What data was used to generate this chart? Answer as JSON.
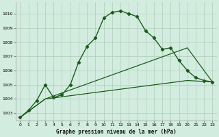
{
  "title": "Graphe pression niveau de la mer (hPa)",
  "background_color": "#d3ece0",
  "grid_color": "#b0ccb8",
  "line_color": "#1a5c1a",
  "xlim": [
    -0.5,
    23.5
  ],
  "ylim": [
    1002.5,
    1010.8
  ],
  "yticks": [
    1003,
    1004,
    1005,
    1006,
    1007,
    1008,
    1009,
    1010
  ],
  "xticks": [
    0,
    1,
    2,
    3,
    4,
    5,
    6,
    7,
    8,
    9,
    10,
    11,
    12,
    13,
    14,
    15,
    16,
    17,
    18,
    19,
    20,
    21,
    22,
    23
  ],
  "series1_x": [
    0,
    1,
    2,
    3,
    4,
    5,
    6,
    7,
    8,
    9,
    10,
    11,
    12,
    13,
    14,
    15,
    16,
    17,
    18,
    19,
    20,
    21,
    22,
    23
  ],
  "series1_y": [
    1002.7,
    1003.2,
    1003.9,
    1005.0,
    1004.1,
    1004.3,
    1005.0,
    1006.6,
    1007.7,
    1008.3,
    1009.7,
    1010.1,
    1010.2,
    1010.0,
    1009.8,
    1008.8,
    1008.3,
    1007.5,
    1007.6,
    1006.7,
    1006.0,
    1005.5,
    1005.3,
    1005.2
  ],
  "series2_x": [
    0,
    3,
    20,
    23
  ],
  "series2_y": [
    1002.7,
    1004.0,
    1007.6,
    1005.2
  ],
  "series3_x": [
    0,
    3,
    20,
    23
  ],
  "series3_y": [
    1002.7,
    1004.0,
    1005.3,
    1005.2
  ]
}
